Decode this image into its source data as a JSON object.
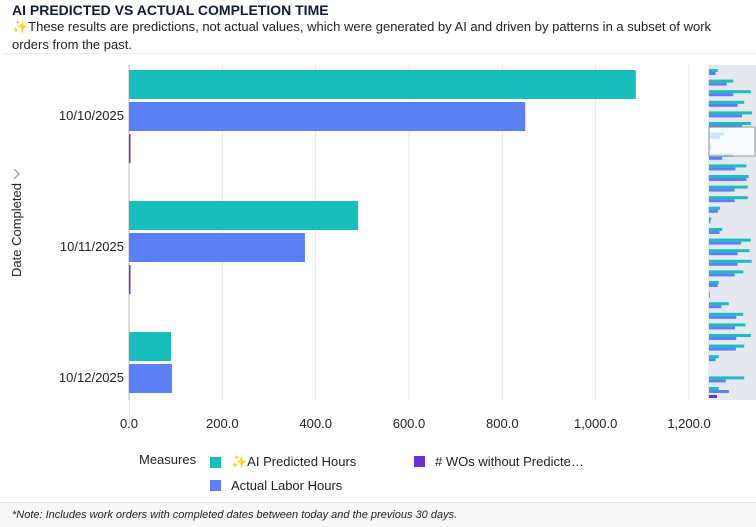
{
  "header": {
    "title": "AI PREDICTED VS ACTUAL COMPLETION TIME",
    "subtitle": "✨These results are predictions, not actual values, which were generated by AI and driven by patterns in a subset of work orders from the past."
  },
  "footer": {
    "note": "*Note: Includes work orders with completed dates between today and the previous 30 days."
  },
  "legend": {
    "title": "Measures",
    "items": [
      {
        "label": "✨AI Predicted Hours",
        "color": "#17bebb"
      },
      {
        "label": "# WOs without Predicte…",
        "color": "#6d2fd6"
      },
      {
        "label": "Actual Labor Hours",
        "color": "#5b7ff7"
      }
    ]
  },
  "chart_data": {
    "type": "bar",
    "orientation": "horizontal",
    "ylabel": "Date Completed",
    "xlabel": "",
    "categories": [
      "10/10/2025",
      "10/11/2025",
      "10/12/2025"
    ],
    "series": [
      {
        "name": "✨AI Predicted Hours",
        "color": "#17bebb",
        "values": [
          1086,
          491,
          90
        ]
      },
      {
        "name": "Actual Labor Hours",
        "color": "#5b7ff7",
        "values": [
          849,
          377,
          92
        ]
      },
      {
        "name": "# WOs without Predicte…",
        "color": "#6d2fd6",
        "values": [
          1,
          1,
          0
        ]
      }
    ],
    "xlim": [
      0,
      1200
    ],
    "xticks": [
      "0.0",
      "200.0",
      "400.0",
      "600.0",
      "800.0",
      "1,000.0",
      "1,200.0"
    ],
    "grid": true,
    "legend_position": "bottom",
    "has_overview_scrollbar": true
  }
}
